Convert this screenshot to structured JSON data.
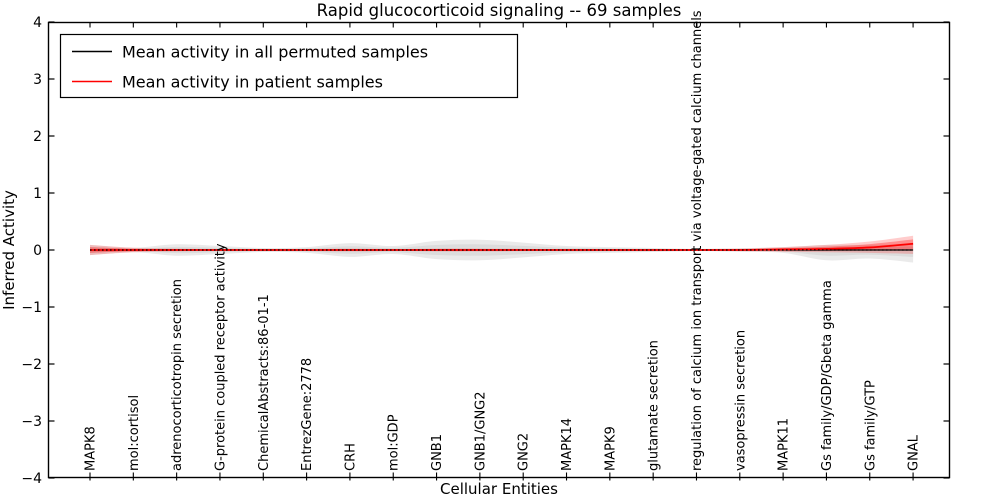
{
  "chart_data": {
    "type": "area",
    "subtype": "mean-activity-envelope-violin",
    "title": "Rapid glucocorticoid signaling -- 69 samples",
    "xlabel": "Cellular Entities",
    "ylabel": "Inferred Activity",
    "ylim": [
      -4,
      4
    ],
    "yticks": [
      -4,
      -3,
      -2,
      -1,
      0,
      1,
      2,
      3,
      4
    ],
    "ytick_labels": [
      "−4",
      "−3",
      "−2",
      "−1",
      "0",
      "1",
      "2",
      "3",
      "4"
    ],
    "grid": false,
    "legend_position": "upper left",
    "categories": [
      "MAPK8",
      "mol:cortisol",
      "adrenocorticotropin secretion",
      "G-protein coupled receptor activity",
      "ChemicalAbstracts:86-01-1",
      "EntrezGene:2778",
      "CRH",
      "mol:GDP",
      "GNB1",
      "GNB1/GNG2",
      "GNG2",
      "MAPK14",
      "MAPK9",
      "glutamate secretion",
      "regulation of calcium ion transport via voltage-gated calcium channels",
      "vasopressin secretion",
      "MAPK11",
      "Gs family/GDP/Gbeta gamma",
      "Gs family/GTP",
      "GNAL"
    ],
    "series": [
      {
        "name": "Mean activity in all permuted samples",
        "color": "#000000",
        "band_color": "#bfbfbf",
        "mean": [
          0,
          0,
          0,
          0,
          0,
          0,
          0,
          0,
          0,
          0,
          0,
          0,
          0,
          0,
          0,
          0,
          0,
          0,
          0,
          0
        ],
        "band_upper": [
          0.09,
          0.04,
          0.1,
          0.07,
          0.035,
          0.05,
          0.12,
          0.07,
          0.16,
          0.18,
          0.13,
          0.07,
          0.05,
          0.035,
          0.02,
          0.03,
          0.05,
          0.09,
          0.09,
          0.1
        ],
        "band_lower": [
          -0.09,
          -0.04,
          -0.1,
          -0.07,
          -0.035,
          -0.05,
          -0.12,
          -0.07,
          -0.16,
          -0.18,
          -0.13,
          -0.07,
          -0.05,
          -0.035,
          -0.02,
          -0.03,
          -0.05,
          -0.18,
          -0.15,
          -0.22
        ]
      },
      {
        "name": "Mean activity in patient samples",
        "color": "#ff0000",
        "band_color": "#ff0000",
        "mean": [
          0,
          0,
          0,
          0,
          0,
          0,
          0,
          0,
          0,
          0,
          0,
          0,
          0,
          0,
          0,
          0,
          0.01,
          0.02,
          0.045,
          0.11
        ],
        "band_upper": [
          0.09,
          0.04,
          0.025,
          0.018,
          0.018,
          0.018,
          0.025,
          0.018,
          0.025,
          0.025,
          0.02,
          0.018,
          0.018,
          0.018,
          0.018,
          0.025,
          0.05,
          0.09,
          0.15,
          0.25
        ],
        "band_lower": [
          -0.09,
          -0.04,
          -0.025,
          -0.018,
          -0.018,
          -0.018,
          -0.025,
          -0.018,
          -0.025,
          -0.025,
          -0.02,
          -0.018,
          -0.018,
          -0.018,
          -0.018,
          -0.02,
          -0.03,
          -0.04,
          -0.05,
          -0.07
        ]
      }
    ],
    "zero_line": 0
  }
}
